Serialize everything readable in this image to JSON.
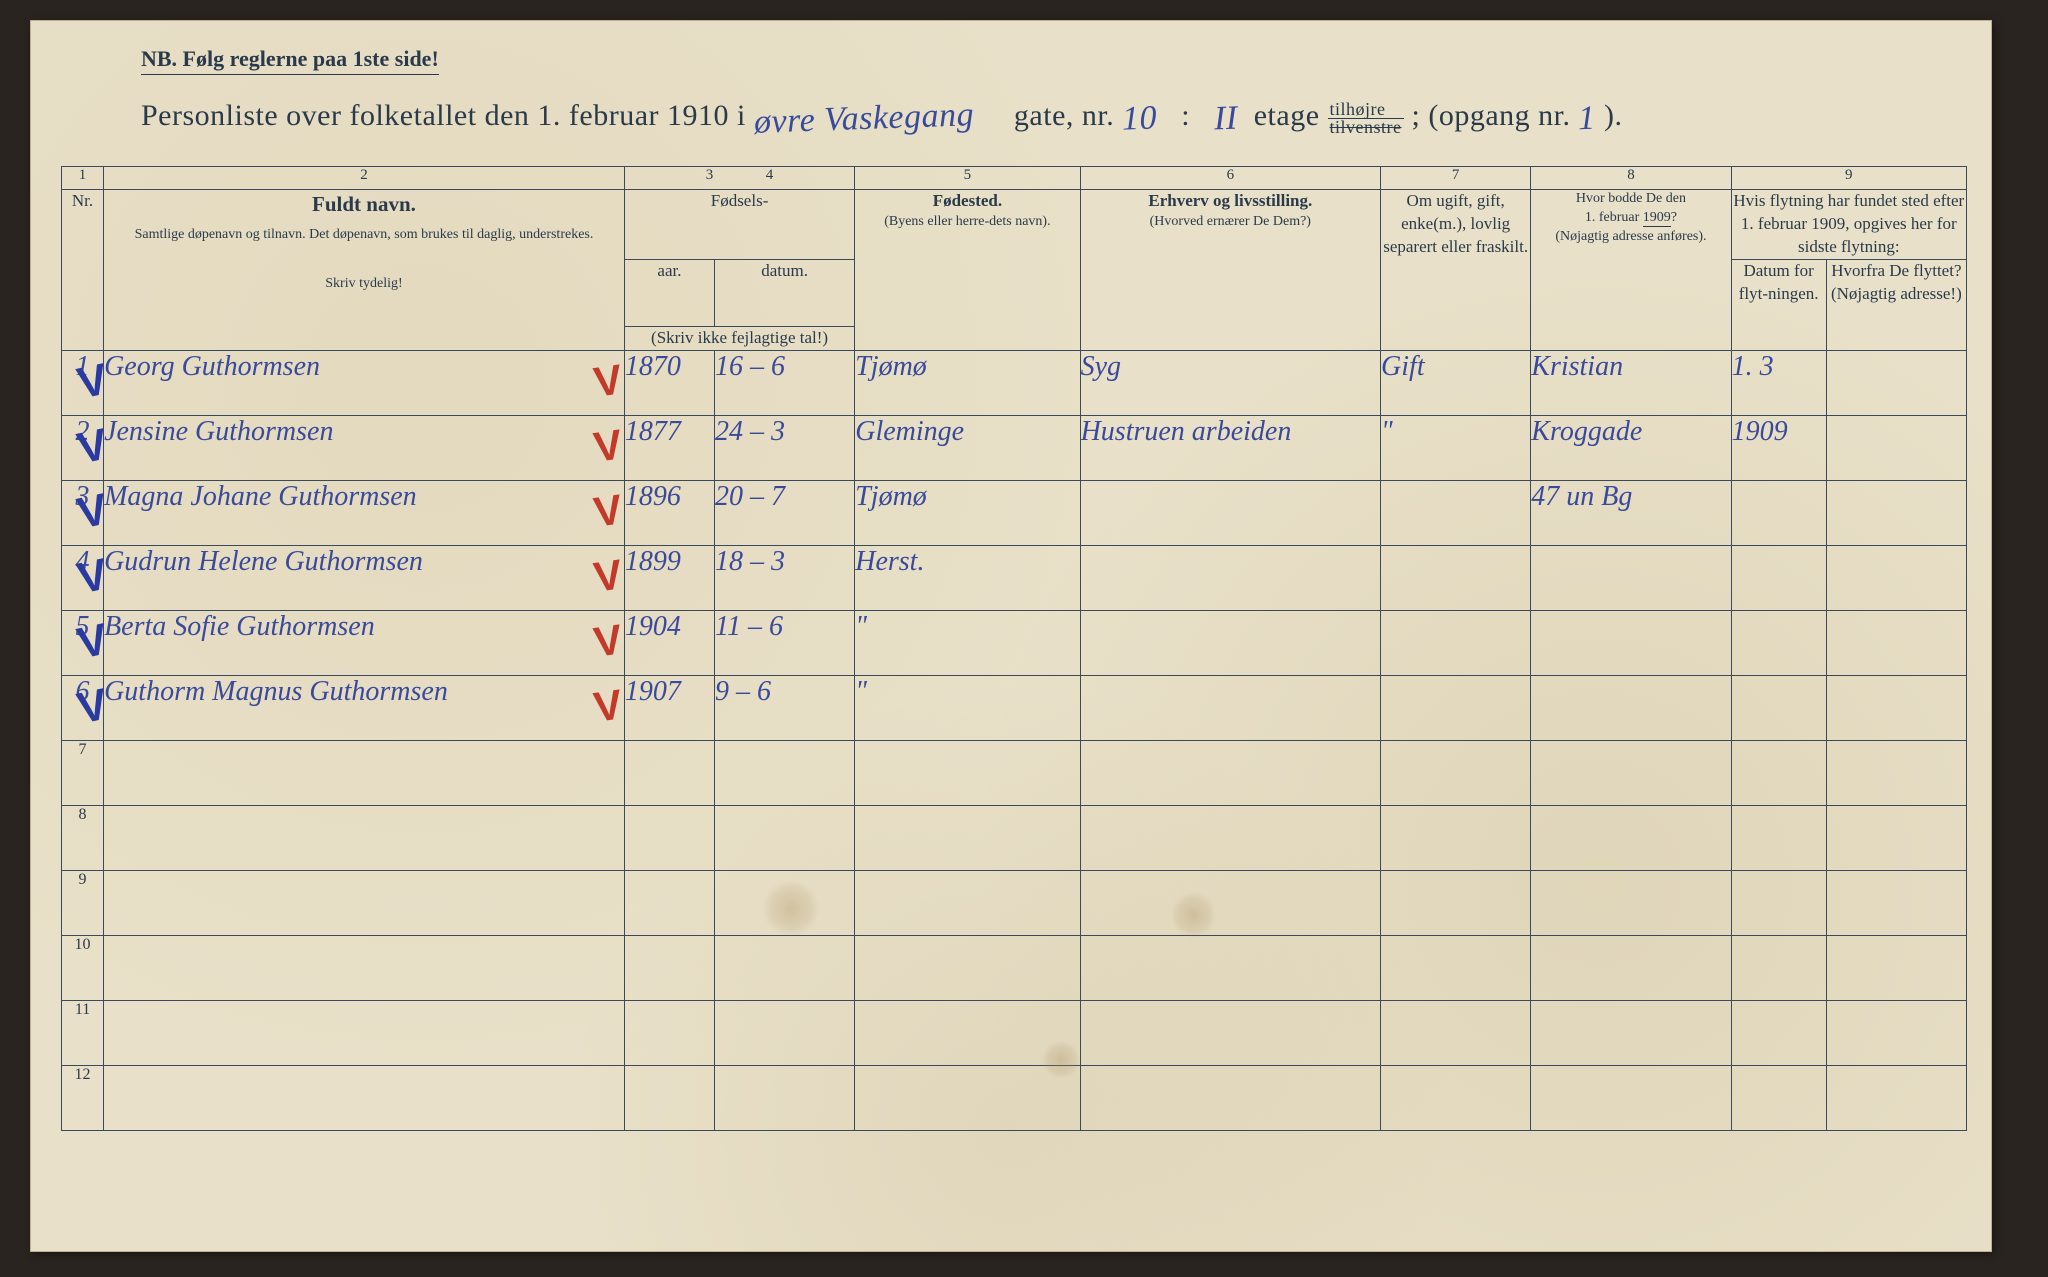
{
  "nb": "NB.   Følg reglerne paa 1ste side!",
  "title": {
    "prefix": "Personliste over folketallet den 1. februar 1910 i",
    "street_hand": "øvre Vaskegang",
    "gate_nr_label": "gate, nr.",
    "gate_nr": "10",
    "colon": ":",
    "etage": "II",
    "etage_label": "etage",
    "tilhojre_top": "tilhøjre",
    "tilhojre_bot": "tilvenstre",
    "opgang_label": "; (opgang nr.",
    "opgang_nr": "1",
    "close": ")."
  },
  "colnums": [
    "1",
    "2",
    "3",
    "4",
    "5",
    "6",
    "7",
    "8",
    "9"
  ],
  "headers": {
    "c2_main": "Fuldt navn.",
    "c2_sub": "Samtlige døpenavn og tilnavn. Det døpenavn, som brukes til daglig, understrekes.",
    "c2_hint": "Skriv tydelig!",
    "c34_top": "Fødsels-",
    "c3": "aar.",
    "c4": "datum.",
    "c34_sub": "(Skriv ikke fejlagtige tal!)",
    "c5_main": "Fødested.",
    "c5_sub": "(Byens eller herre-dets navn).",
    "c6_main": "Erhverv og livsstilling.",
    "c6_sub": "(Hvorved ernærer De Dem?)",
    "c7": "Om ugift, gift, enke(m.), lovlig separert eller fraskilt.",
    "c8_main": "Hvor bodde De den 1. februar 1909?",
    "c8_sub": "(Nøjagtig adresse anføres).",
    "c9_top": "Hvis flytning har fundet sted efter 1. februar 1909, opgives her for sidste flytning:",
    "c9a": "Datum for flyt-ningen.",
    "c9b": "Hvorfra De flyttet? (Nøjagtig adresse!)"
  },
  "rows": [
    {
      "n": "1",
      "blue": true,
      "red": true,
      "name": "Georg   Guthormsen",
      "year": "1870",
      "date": "16 – 6",
      "place": "Tjømø",
      "occ": "Syg",
      "status": "Gift",
      "addr": "Kristian",
      "fd": "1. 3",
      "from": ""
    },
    {
      "n": "2",
      "blue": true,
      "red": true,
      "name": "Jensine Guthormsen",
      "year": "1877",
      "date": "24 – 3",
      "place": "Gleminge",
      "occ": "Hustruen arbeiden",
      "status": "\"",
      "addr": "Kroggade",
      "fd": "1909",
      "from": ""
    },
    {
      "n": "3",
      "blue": true,
      "red": true,
      "name": "Magna Johane Guthormsen",
      "year": "1896",
      "date": "20 – 7",
      "place": "Tjømø",
      "occ": "",
      "status": "",
      "addr": "47 un Bg",
      "fd": "",
      "from": ""
    },
    {
      "n": "4",
      "blue": true,
      "red": true,
      "name": "Gudrun Helene Guthormsen",
      "year": "1899",
      "date": "18 – 3",
      "place": "Herst.",
      "occ": "",
      "status": "",
      "addr": "",
      "fd": "",
      "from": ""
    },
    {
      "n": "5",
      "blue": true,
      "red": true,
      "name": "Berta Sofie Guthormsen",
      "year": "1904",
      "date": "11 – 6",
      "place": "\"",
      "occ": "",
      "status": "",
      "addr": "",
      "fd": "",
      "from": ""
    },
    {
      "n": "6",
      "blue": true,
      "red": true,
      "name": "Guthorm Magnus Guthormsen",
      "year": "1907",
      "date": "9 – 6",
      "place": "\"",
      "occ": "",
      "status": "",
      "addr": "",
      "fd": "",
      "from": ""
    }
  ],
  "empty_rows": [
    "7",
    "8",
    "9",
    "10",
    "11",
    "12"
  ],
  "colwidths": {
    "c1": 42,
    "c2": 520,
    "c3": 90,
    "c4": 140,
    "c5": 225,
    "c6": 300,
    "c7": 150,
    "c8": 200,
    "c9a": 95,
    "c9b": 140
  },
  "colors": {
    "paper": "#e8e0c8",
    "ink": "#2a3a4a",
    "hand_blue": "#3a4a9a",
    "check_blue": "#2a3aa0",
    "check_red": "#c43a2a"
  }
}
